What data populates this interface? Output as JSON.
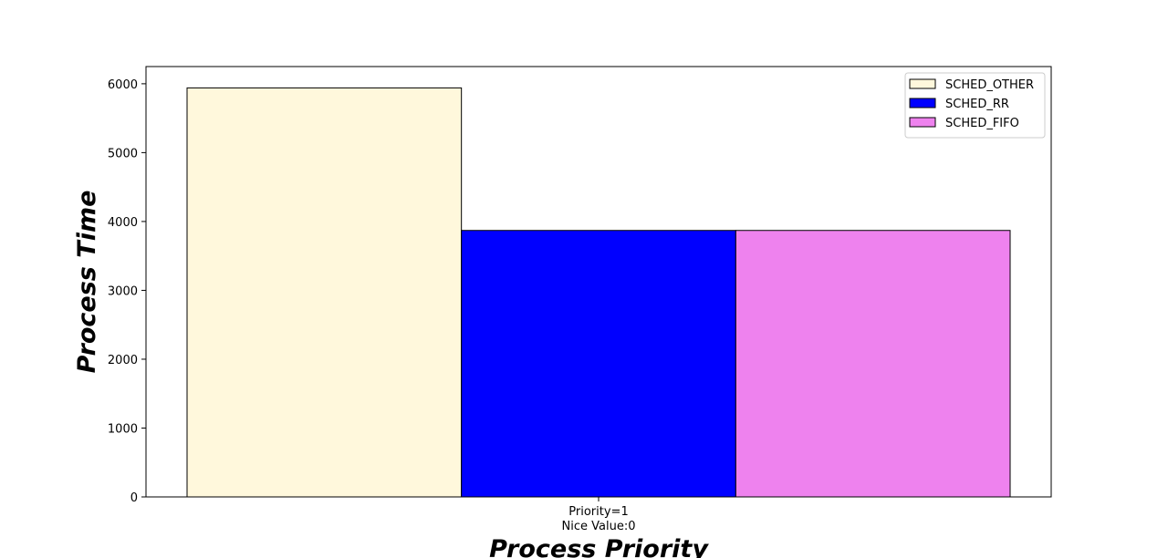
{
  "chart_data": {
    "type": "bar",
    "title": "",
    "xlabel": "Process Priority",
    "ylabel": "Process Time",
    "categories": [
      [
        "Priority=1",
        "Nice Value:0"
      ]
    ],
    "series": [
      {
        "name": "SCHED_OTHER",
        "color": "#fff8dc",
        "values": [
          5940
        ]
      },
      {
        "name": "SCHED_RR",
        "color": "#0000ff",
        "values": [
          3870
        ]
      },
      {
        "name": "SCHED_FIFO",
        "color": "#ee82ee",
        "values": [
          3870
        ]
      }
    ],
    "ylim": [
      0,
      6250
    ],
    "yticks": [
      0,
      1000,
      2000,
      3000,
      4000,
      5000,
      6000
    ],
    "legend_position": "top-right",
    "grid": false
  }
}
